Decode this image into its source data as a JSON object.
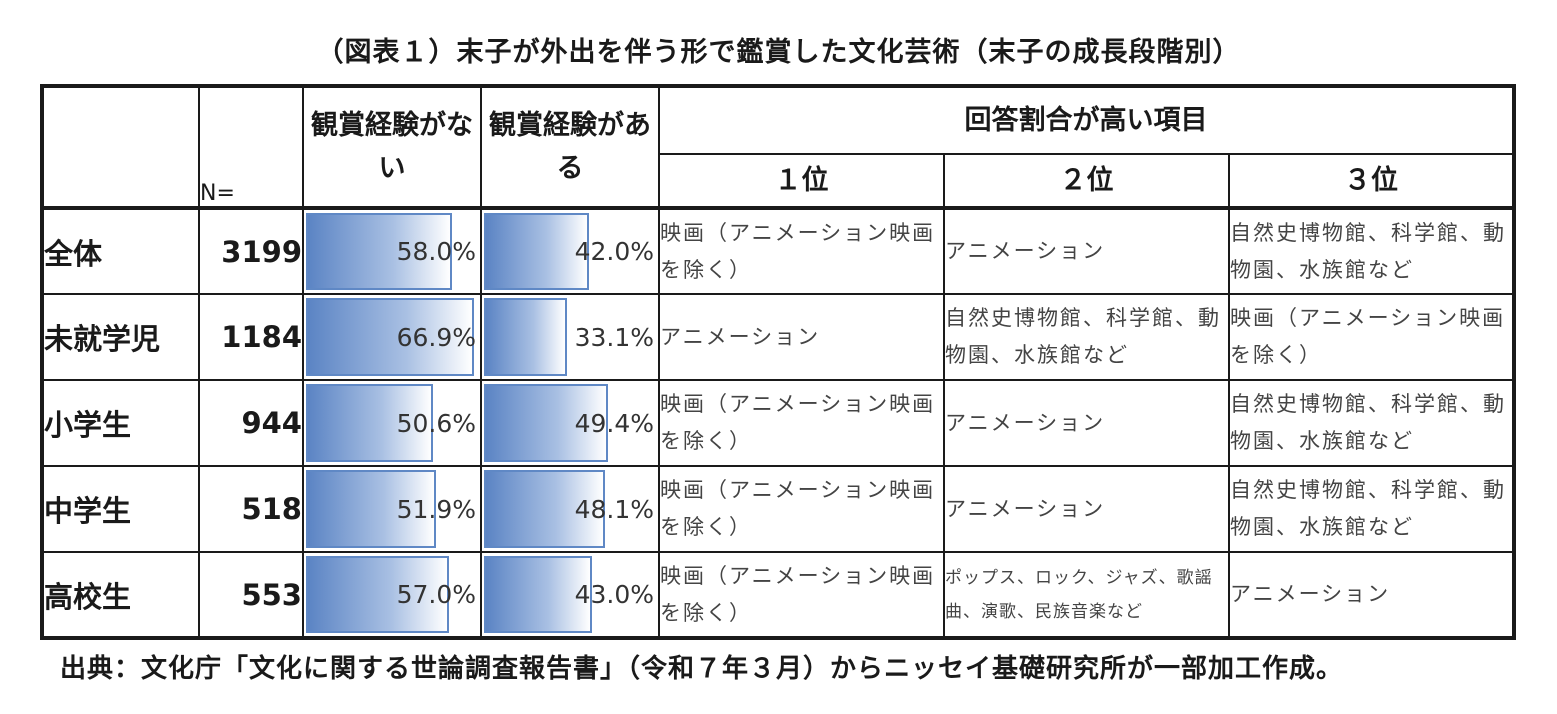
{
  "title": "（図表１）末子が外出を伴う形で鑑賞した文化芸術（末子の成長段階別）",
  "source": "出典：文化庁「文化に関する世論調査報告書」（令和７年３月）からニッセイ基礎研究所が一部加工作成。",
  "headers": {
    "n": "N=",
    "no_experience": "観賞経験がない",
    "has_experience": "観賞経験がある",
    "top_items": "回答割合が高い項目",
    "rank1": "１位",
    "rank2": "２位",
    "rank3": "３位"
  },
  "colors": {
    "bar_fill": "#5b84c4",
    "bar_border": "#5f88c5"
  },
  "chart_data": {
    "type": "table",
    "columns": [
      "N=",
      "観賞経験がない",
      "観賞経験がある",
      "１位",
      "２位",
      "３位"
    ],
    "rows": [
      {
        "label": "全体",
        "n": "3199",
        "no": 58.0,
        "no_label": "58.0%",
        "yes": 42.0,
        "yes_label": "42.0%",
        "rank1": "映画（アニメーション映画を除く）",
        "rank2": "アニメーション",
        "rank3": "自然史博物館、科学館、動物園、水族館など"
      },
      {
        "label": "未就学児",
        "n": "1184",
        "no": 66.9,
        "no_label": "66.9%",
        "yes": 33.1,
        "yes_label": "33.1%",
        "rank1": "アニメーション",
        "rank2": "自然史博物館、科学館、動物園、水族館など",
        "rank3": "映画（アニメーション映画を除く）"
      },
      {
        "label": "小学生",
        "n": "944",
        "no": 50.6,
        "no_label": "50.6%",
        "yes": 49.4,
        "yes_label": "49.4%",
        "rank1": "映画（アニメーション映画を除く）",
        "rank2": "アニメーション",
        "rank3": "自然史博物館、科学館、動物園、水族館など"
      },
      {
        "label": "中学生",
        "n": "518",
        "no": 51.9,
        "no_label": "51.9%",
        "yes": 48.1,
        "yes_label": "48.1%",
        "rank1": "映画（アニメーション映画を除く）",
        "rank2": "アニメーション",
        "rank3": "自然史博物館、科学館、動物園、水族館など"
      },
      {
        "label": "高校生",
        "n": "553",
        "no": 57.0,
        "no_label": "57.0%",
        "yes": 43.0,
        "yes_label": "43.0%",
        "rank1": "映画（アニメーション映画を除く）",
        "rank2": "ポップス、ロック、ジャズ、歌謡曲、演歌、民族音楽など",
        "rank3": "アニメーション"
      }
    ]
  }
}
